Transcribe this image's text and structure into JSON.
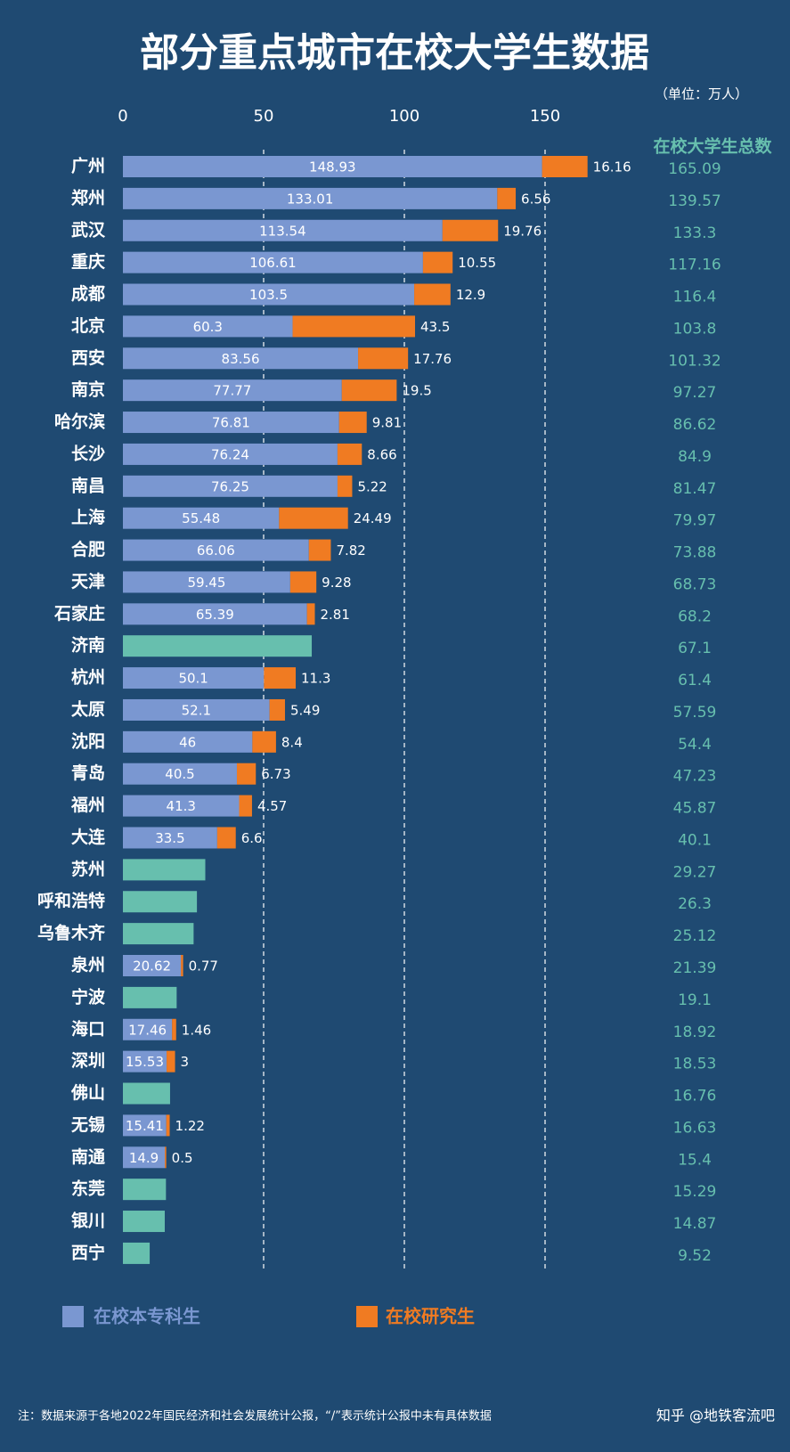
{
  "chart_data": {
    "type": "stacked-bar-horizontal",
    "title": "部分重点城市在校大学生数据",
    "unit": "（单位：万人）",
    "categories": [
      "广州",
      "郑州",
      "武汉",
      "重庆",
      "成都",
      "北京",
      "西安",
      "南京",
      "哈尔滨",
      "长沙",
      "南昌",
      "上海",
      "合肥",
      "天津",
      "石家庄",
      "济南",
      "杭州",
      "太原",
      "沈阳",
      "青岛",
      "福州",
      "大连",
      "苏州",
      "呼和浩特",
      "乌鲁木齐",
      "泉州",
      "宁波",
      "海口",
      "深圳",
      "佛山",
      "无锡",
      "南通",
      "东莞",
      "银川",
      "西宁"
    ],
    "series": [
      {
        "name": "在校本专科生",
        "color": "#7a97d1",
        "values": [
          148.93,
          133.01,
          113.54,
          106.61,
          103.5,
          60.3,
          83.56,
          77.77,
          76.81,
          76.24,
          76.25,
          55.48,
          66.06,
          59.45,
          65.39,
          null,
          50.1,
          52.1,
          46,
          40.5,
          41.3,
          33.5,
          null,
          null,
          null,
          20.62,
          null,
          17.46,
          15.53,
          null,
          15.41,
          14.9,
          null,
          null,
          null
        ]
      },
      {
        "name": "在校研究生",
        "color": "#f07b22",
        "values": [
          16.16,
          6.56,
          19.76,
          10.55,
          12.9,
          43.5,
          17.76,
          19.5,
          9.81,
          8.66,
          5.22,
          24.49,
          7.82,
          9.28,
          2.81,
          null,
          11.3,
          5.49,
          8.4,
          6.73,
          4.57,
          6.6,
          null,
          null,
          null,
          0.77,
          null,
          1.46,
          3,
          null,
          1.22,
          0.5,
          null,
          null,
          null
        ]
      }
    ],
    "totals": {
      "name": "在校大学生总数",
      "color": "#67bfae",
      "values": [
        165.09,
        139.57,
        133.3,
        117.16,
        116.4,
        103.8,
        101.32,
        97.27,
        86.62,
        84.9,
        81.47,
        79.97,
        73.88,
        68.73,
        68.2,
        67.1,
        61.4,
        57.59,
        54.4,
        47.23,
        45.87,
        40.1,
        29.27,
        26.3,
        25.12,
        21.39,
        19.1,
        18.92,
        18.53,
        16.76,
        16.63,
        15.4,
        15.29,
        14.87,
        9.52
      ]
    },
    "xlim": [
      0,
      170
    ],
    "xticks": [
      0,
      50,
      100,
      150
    ],
    "grid": true,
    "note": "注：数据来源于各地2022年国民经济和社会发展统计公报，“/”表示统计公报中未有具体数据",
    "watermark": "知乎 @地铁客流吧"
  }
}
